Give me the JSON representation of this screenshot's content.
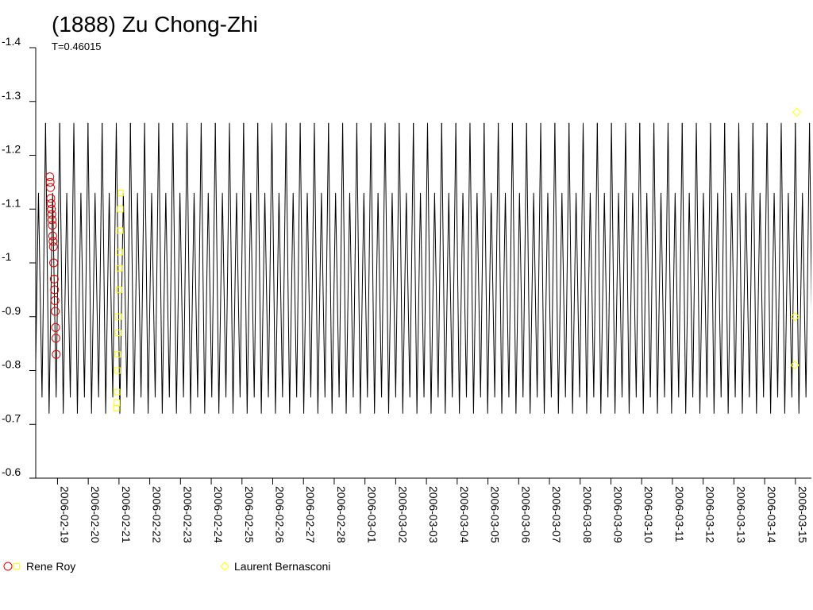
{
  "chart_data": {
    "type": "lightcurve",
    "title": "(1888) Zu Chong-Zhi",
    "subtitle": "T=0.46015",
    "ylim": [
      -1.4,
      -0.6
    ],
    "yticks": [
      -1.4,
      -1.3,
      -1.2,
      -1.1,
      -1.0,
      -0.9,
      -0.8,
      -0.7,
      -0.6
    ],
    "xlim": [
      "2006-02-18T07:00",
      "2006-03-15T12:30"
    ],
    "xticks": [
      "2006-02-19",
      "2006-02-20",
      "2006-02-21",
      "2006-02-22",
      "2006-02-23",
      "2006-02-24",
      "2006-02-25",
      "2006-02-26",
      "2006-02-27",
      "2006-02-28",
      "2006-03-01",
      "2006-03-02",
      "2006-03-03",
      "2006-03-04",
      "2006-03-05",
      "2006-03-06",
      "2006-03-07",
      "2006-03-08",
      "2006-03-09",
      "2006-03-10",
      "2006-03-11",
      "2006-03-12",
      "2006-03-13",
      "2006-03-14",
      "2006-03-15"
    ],
    "curve": {
      "color": "#000000",
      "period": 0.46015,
      "epoch": "2006-02-18T14:40",
      "phase": [
        0,
        0.125,
        0.25,
        0.375,
        0.5,
        0.625,
        0.75,
        0.875,
        1
      ],
      "values": [
        -1.26,
        -0.99,
        -0.72,
        -0.93,
        -1.13,
        -0.94,
        -0.75,
        -1.0,
        -1.26
      ]
    },
    "series": [
      {
        "name": "Rene Roy",
        "sessions": [
          {
            "marker": "circle",
            "color": "#e00000",
            "x": [
              "2006-02-18T18:00",
              "2006-02-18T18:15",
              "2006-02-18T18:30",
              "2006-02-18T18:45",
              "2006-02-18T19:00",
              "2006-02-18T19:15",
              "2006-02-18T19:30",
              "2006-02-18T19:45",
              "2006-02-18T20:00",
              "2006-02-18T20:15",
              "2006-02-18T20:30",
              "2006-02-18T20:45",
              "2006-02-18T21:00",
              "2006-02-18T21:30",
              "2006-02-18T21:45",
              "2006-02-18T22:00",
              "2006-02-18T22:15",
              "2006-02-18T22:30",
              "2006-02-18T22:45",
              "2006-02-18T23:00"
            ],
            "values": [
              -1.16,
              -1.15,
              -1.14,
              -1.12,
              -1.11,
              -1.1,
              -1.09,
              -1.08,
              -1.07,
              -1.05,
              -1.04,
              -1.03,
              -1.0,
              -0.97,
              -0.95,
              -0.93,
              -0.91,
              -0.88,
              -0.86,
              -0.83
            ]
          },
          {
            "marker": "square",
            "color": "#ffff00",
            "x": [
              "2006-02-20T22:00",
              "2006-02-20T22:15",
              "2006-02-20T22:30",
              "2006-02-20T22:45",
              "2006-02-20T23:00",
              "2006-02-20T23:20",
              "2006-02-20T23:40",
              "2006-02-21T00:00",
              "2006-02-21T00:15",
              "2006-02-21T00:30",
              "2006-02-21T00:45",
              "2006-02-21T01:00",
              "2006-02-21T01:15"
            ],
            "values": [
              -0.73,
              -0.74,
              -0.76,
              -0.8,
              -0.83,
              -0.87,
              -0.9,
              -0.95,
              -0.99,
              -1.02,
              -1.06,
              -1.1,
              -1.13
            ]
          }
        ]
      },
      {
        "name": "Laurent Bernasconi",
        "sessions": [
          {
            "marker": "diamond",
            "color": "#ffff00",
            "x": [
              "2006-03-14T23:30",
              "2006-03-14T23:45",
              "2006-03-15T01:00"
            ],
            "values": [
              -0.81,
              -0.9,
              -1.28
            ]
          }
        ]
      }
    ]
  }
}
